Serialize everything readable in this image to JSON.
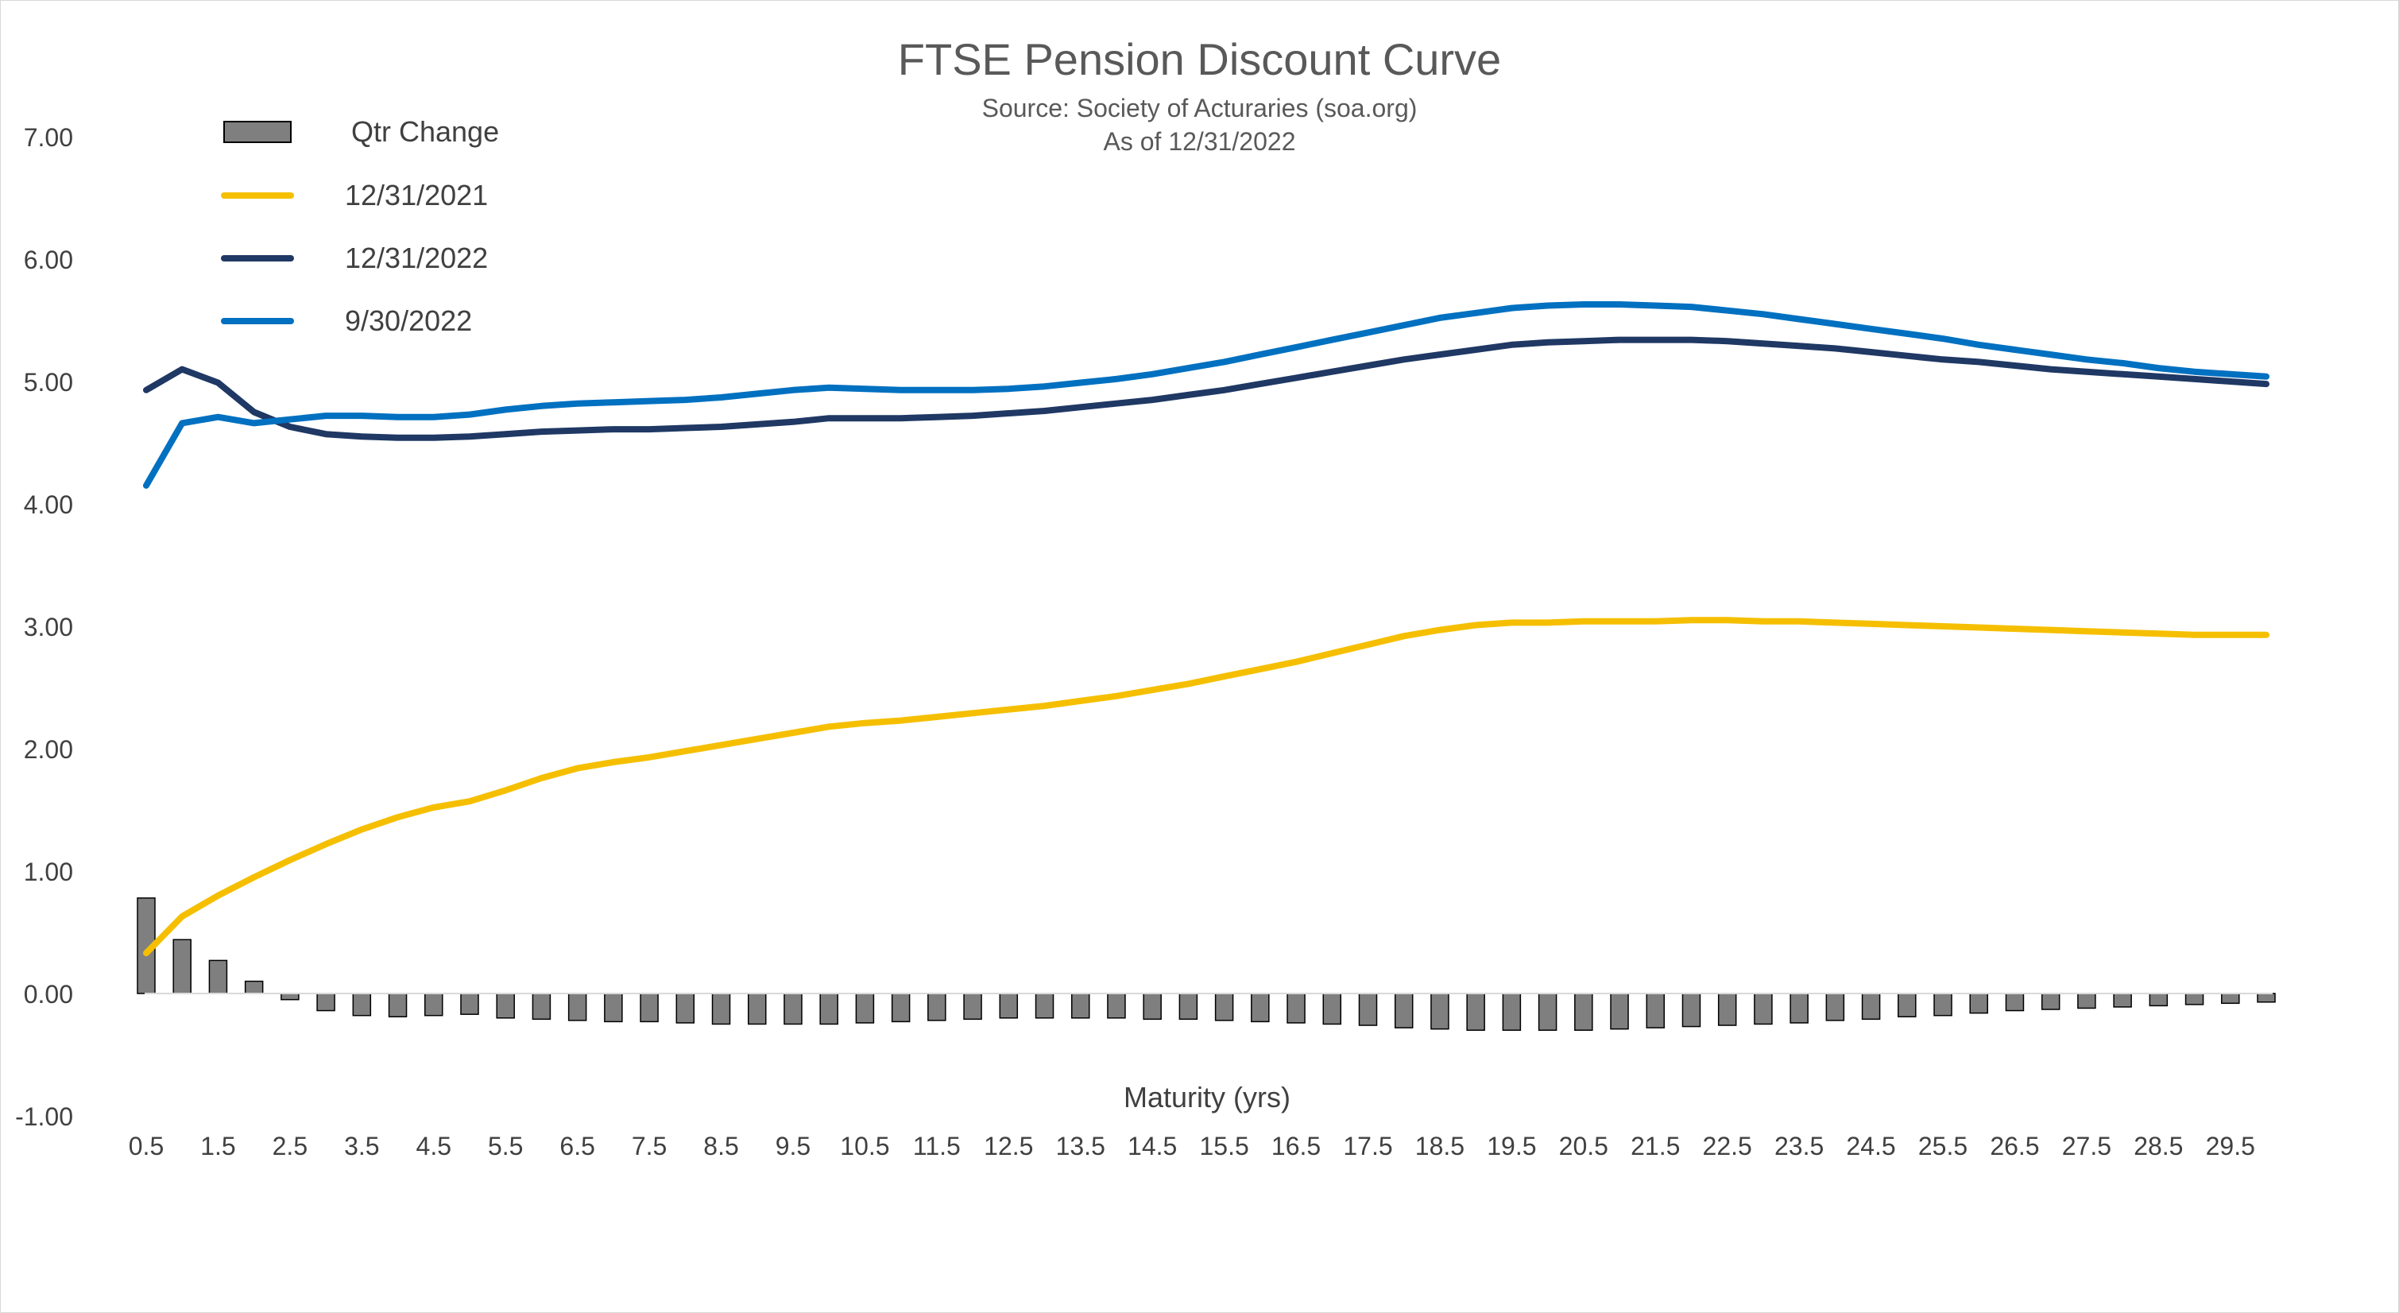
{
  "chart_data": {
    "type": "line",
    "title": "FTSE Pension Discount Curve",
    "subtitle": [
      "Source: Society of Acturaries (soa.org)",
      "As of 12/31/2022"
    ],
    "xlabel": "Maturity (yrs)",
    "ylabel": "",
    "ylim": [
      -1,
      7
    ],
    "y_ticks": [
      "7.00",
      "6.00",
      "5.00",
      "4.00",
      "3.00",
      "2.00",
      "1.00",
      "0.00",
      "-1.00"
    ],
    "y_tick_values": [
      7,
      6,
      5,
      4,
      3,
      2,
      1,
      0,
      -1
    ],
    "x_tick_labels": [
      "0.5",
      "1.5",
      "2.5",
      "3.5",
      "4.5",
      "5.5",
      "6.5",
      "7.5",
      "8.5",
      "9.5",
      "10.5",
      "11.5",
      "12.5",
      "13.5",
      "14.5",
      "15.5",
      "16.5",
      "17.5",
      "18.5",
      "19.5",
      "20.5",
      "21.5",
      "22.5",
      "23.5",
      "24.5",
      "25.5",
      "26.5",
      "27.5",
      "28.5",
      "29.5"
    ],
    "x": [
      0.5,
      1,
      1.5,
      2,
      2.5,
      3,
      3.5,
      4,
      4.5,
      5,
      5.5,
      6,
      6.5,
      7,
      7.5,
      8,
      8.5,
      9,
      9.5,
      10,
      10.5,
      11,
      11.5,
      12,
      12.5,
      13,
      13.5,
      14,
      14.5,
      15,
      15.5,
      16,
      16.5,
      17,
      17.5,
      18,
      18.5,
      19,
      19.5,
      20,
      20.5,
      21,
      21.5,
      22,
      22.5,
      23,
      23.5,
      24,
      24.5,
      25,
      25.5,
      26,
      26.5,
      27,
      27.5,
      28,
      28.5,
      29,
      29.5,
      30
    ],
    "grid": false,
    "legend_position": "top-left",
    "bar_series": {
      "name": "Qtr Change",
      "color": "#7f7f7f",
      "edge_color": "#000000",
      "values": [
        0.78,
        0.44,
        0.27,
        0.1,
        -0.05,
        -0.14,
        -0.18,
        -0.19,
        -0.18,
        -0.17,
        -0.2,
        -0.21,
        -0.22,
        -0.23,
        -0.23,
        -0.24,
        -0.25,
        -0.25,
        -0.25,
        -0.25,
        -0.24,
        -0.23,
        -0.22,
        -0.21,
        -0.2,
        -0.2,
        -0.2,
        -0.2,
        -0.21,
        -0.21,
        -0.22,
        -0.23,
        -0.24,
        -0.25,
        -0.26,
        -0.28,
        -0.29,
        -0.3,
        -0.3,
        -0.3,
        -0.3,
        -0.29,
        -0.28,
        -0.27,
        -0.26,
        -0.25,
        -0.24,
        -0.22,
        -0.21,
        -0.19,
        -0.18,
        -0.16,
        -0.14,
        -0.13,
        -0.12,
        -0.11,
        -0.1,
        -0.09,
        -0.08,
        -0.07
      ]
    },
    "series": [
      {
        "name": "12/31/2021",
        "color": "#f5bf00",
        "values": [
          0.33,
          0.63,
          0.8,
          0.95,
          1.09,
          1.22,
          1.34,
          1.44,
          1.52,
          1.57,
          1.66,
          1.76,
          1.84,
          1.89,
          1.93,
          1.98,
          2.03,
          2.08,
          2.13,
          2.18,
          2.21,
          2.23,
          2.26,
          2.29,
          2.32,
          2.35,
          2.39,
          2.43,
          2.48,
          2.53,
          2.59,
          2.65,
          2.71,
          2.78,
          2.85,
          2.92,
          2.97,
          3.01,
          3.03,
          3.03,
          3.04,
          3.04,
          3.04,
          3.05,
          3.05,
          3.04,
          3.04,
          3.03,
          3.02,
          3.01,
          3.0,
          2.99,
          2.98,
          2.97,
          2.96,
          2.95,
          2.94,
          2.93,
          2.93,
          2.93
        ]
      },
      {
        "name": "12/31/2022",
        "color": "#1f3864",
        "values": [
          4.93,
          5.1,
          4.99,
          4.75,
          4.63,
          4.57,
          4.55,
          4.54,
          4.54,
          4.55,
          4.57,
          4.59,
          4.6,
          4.61,
          4.61,
          4.62,
          4.63,
          4.65,
          4.67,
          4.7,
          4.7,
          4.7,
          4.71,
          4.72,
          4.74,
          4.76,
          4.79,
          4.82,
          4.85,
          4.89,
          4.93,
          4.98,
          5.03,
          5.08,
          5.13,
          5.18,
          5.22,
          5.26,
          5.3,
          5.32,
          5.33,
          5.34,
          5.34,
          5.34,
          5.33,
          5.31,
          5.29,
          5.27,
          5.24,
          5.21,
          5.18,
          5.16,
          5.13,
          5.1,
          5.08,
          5.06,
          5.04,
          5.02,
          5.0,
          4.98
        ]
      },
      {
        "name": "9/30/2022",
        "color": "#0070c0",
        "values": [
          4.15,
          4.66,
          4.71,
          4.66,
          4.69,
          4.72,
          4.72,
          4.71,
          4.71,
          4.73,
          4.77,
          4.8,
          4.82,
          4.83,
          4.84,
          4.85,
          4.87,
          4.9,
          4.93,
          4.95,
          4.94,
          4.93,
          4.93,
          4.93,
          4.94,
          4.96,
          4.99,
          5.02,
          5.06,
          5.11,
          5.16,
          5.22,
          5.28,
          5.34,
          5.4,
          5.46,
          5.52,
          5.56,
          5.6,
          5.62,
          5.63,
          5.63,
          5.62,
          5.61,
          5.58,
          5.55,
          5.51,
          5.47,
          5.43,
          5.39,
          5.35,
          5.3,
          5.26,
          5.22,
          5.18,
          5.15,
          5.11,
          5.08,
          5.06,
          5.04
        ]
      }
    ]
  }
}
